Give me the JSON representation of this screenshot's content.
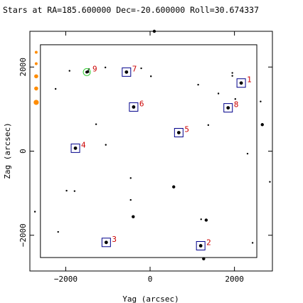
{
  "chart_data": {
    "type": "scatter",
    "title": "Stars at RA=185.600000 Dec=-20.600000 Roll=30.674337",
    "xlabel": "Yag (arcsec)",
    "ylabel": "Zag (arcsec)",
    "xlim": [
      -2850,
      2900
    ],
    "ylim": [
      -2850,
      2850
    ],
    "xticks": [
      -2000,
      0,
      2000
    ],
    "yticks": [
      -2000,
      0,
      2000
    ],
    "xtick_labels": [
      "−2000",
      "0",
      "2000"
    ],
    "ytick_labels": [
      "−2000",
      "0",
      "2000"
    ],
    "grid": false,
    "ccd_boundary": {
      "x0": -2600,
      "x1": 2530,
      "y0": -2530,
      "y1": 2530
    },
    "colors": {
      "star": "#000000",
      "guide_box": "#00008b",
      "acq_label": "#cc0000",
      "fid": "#ff8c00",
      "monitor": "#33cc33"
    },
    "catalog_stars": [
      {
        "yag": 100,
        "zag": 2850,
        "mag": 2
      },
      {
        "yag": -1910,
        "zag": 1910,
        "mag": 1
      },
      {
        "yag": -1470,
        "zag": 1910,
        "mag": 1
      },
      {
        "yag": -1460,
        "zag": 1880,
        "mag": 1
      },
      {
        "yag": -1450,
        "zag": 1950,
        "mag": 1
      },
      {
        "yag": -1060,
        "zag": 1990,
        "mag": 1
      },
      {
        "yag": -210,
        "zag": 1970,
        "mag": 1
      },
      {
        "yag": 20,
        "zag": 1780,
        "mag": 1
      },
      {
        "yag": 1950,
        "zag": 1860,
        "mag": 1
      },
      {
        "yag": 1950,
        "zag": 1790,
        "mag": 1
      },
      {
        "yag": -2240,
        "zag": 1480,
        "mag": 1
      },
      {
        "yag": 1140,
        "zag": 1580,
        "mag": 1
      },
      {
        "yag": 1620,
        "zag": 1370,
        "mag": 1
      },
      {
        "yag": 2020,
        "zag": 1240,
        "mag": 1
      },
      {
        "yag": 2620,
        "zag": 1180,
        "mag": 1
      },
      {
        "yag": -1280,
        "zag": 640,
        "mag": 1
      },
      {
        "yag": 1380,
        "zag": 620,
        "mag": 1
      },
      {
        "yag": 2660,
        "zag": 630,
        "mag": 2
      },
      {
        "yag": -1050,
        "zag": 150,
        "mag": 1
      },
      {
        "yag": 2310,
        "zag": -60,
        "mag": 1
      },
      {
        "yag": -460,
        "zag": -640,
        "mag": 1
      },
      {
        "yag": 560,
        "zag": -850,
        "mag": 2
      },
      {
        "yag": -1980,
        "zag": -940,
        "mag": 1
      },
      {
        "yag": -1790,
        "zag": -950,
        "mag": 1
      },
      {
        "yag": 2840,
        "zag": -730,
        "mag": 1
      },
      {
        "yag": -460,
        "zag": -1160,
        "mag": 1
      },
      {
        "yag": -2730,
        "zag": -1440,
        "mag": 1
      },
      {
        "yag": -400,
        "zag": -1560,
        "mag": 2
      },
      {
        "yag": 1210,
        "zag": -1620,
        "mag": 1
      },
      {
        "yag": 1330,
        "zag": -1640,
        "mag": 2
      },
      {
        "yag": -2180,
        "zag": -1920,
        "mag": 1
      },
      {
        "yag": 2430,
        "zag": -2180,
        "mag": 1
      },
      {
        "yag": 1270,
        "zag": -2560,
        "mag": 2
      }
    ],
    "fid_lights": [
      {
        "yag": -2700,
        "zag": 2350,
        "size": 1
      },
      {
        "yag": -2700,
        "zag": 2080,
        "size": 1
      },
      {
        "yag": -2700,
        "zag": 1780,
        "size": 2
      },
      {
        "yag": -2700,
        "zag": 1490,
        "size": 2
      },
      {
        "yag": -2700,
        "zag": 1160,
        "size": 3
      }
    ],
    "selected_stars": [
      {
        "id": "1",
        "yag": 2160,
        "zag": 1620
      },
      {
        "id": "2",
        "yag": 1200,
        "zag": -2250
      },
      {
        "id": "3",
        "yag": -1040,
        "zag": -2170
      },
      {
        "id": "4",
        "yag": -1770,
        "zag": 70
      },
      {
        "id": "5",
        "yag": 680,
        "zag": 440
      },
      {
        "id": "6",
        "yag": -390,
        "zag": 1050
      },
      {
        "id": "7",
        "yag": -560,
        "zag": 1880
      },
      {
        "id": "8",
        "yag": 1850,
        "zag": 1030
      }
    ],
    "monitor_stars": [
      {
        "id": "9",
        "yag": -1500,
        "zag": 1880
      }
    ]
  }
}
